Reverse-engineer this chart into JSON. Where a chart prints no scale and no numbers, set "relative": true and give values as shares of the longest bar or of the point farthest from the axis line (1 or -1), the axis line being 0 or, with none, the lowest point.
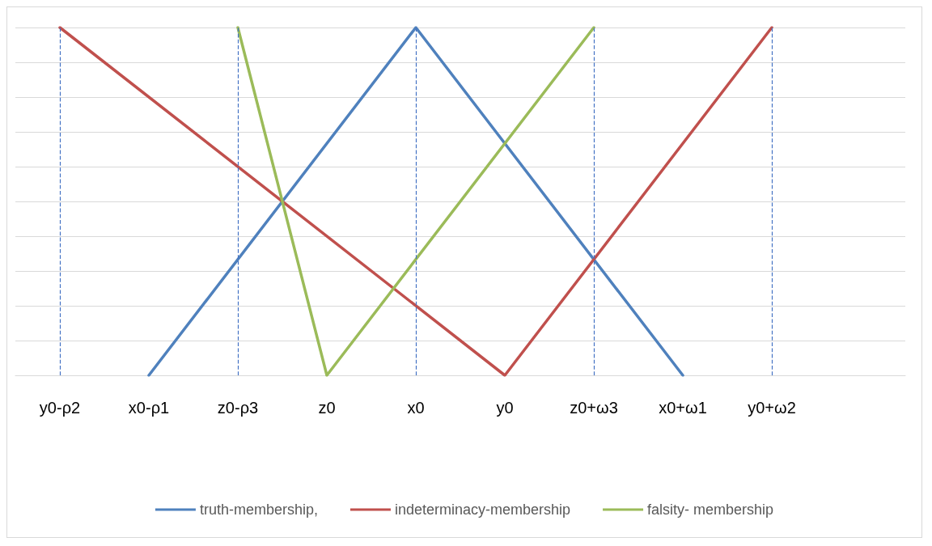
{
  "chart_data": {
    "type": "line",
    "relative": true,
    "categories": [
      "y0-ρ2",
      "x0-ρ1",
      "z0-ρ3",
      "z0",
      "x0",
      "y0",
      "z0+ω3",
      "x0+ω1",
      "y0+ω2",
      null
    ],
    "series": [
      {
        "name": "truth-membership,",
        "color": "#4f81bd",
        "values": [
          null,
          0,
          null,
          null,
          1,
          null,
          null,
          0,
          null,
          null
        ]
      },
      {
        "name": "indeterminacy-membership",
        "color": "#c0504d",
        "values": [
          1,
          null,
          null,
          null,
          null,
          0,
          null,
          null,
          1,
          null
        ]
      },
      {
        "name": "falsity- membership",
        "color": "#9bbb59",
        "values": [
          null,
          null,
          1,
          0,
          null,
          null,
          1,
          null,
          null,
          null
        ]
      }
    ],
    "ref_lines": [
      {
        "axis": "x",
        "value": "y0-ρ2",
        "color": "#4472c4",
        "line_style": "dashed"
      },
      {
        "axis": "x",
        "value": "z0-ρ3",
        "color": "#4472c4",
        "line_style": "dashed"
      },
      {
        "axis": "x",
        "value": "x0",
        "color": "#4472c4",
        "line_style": "dashed"
      },
      {
        "axis": "x",
        "value": "z0+ω3",
        "color": "#4472c4",
        "line_style": "dashed"
      },
      {
        "axis": "x",
        "value": "y0+ω2",
        "color": "#4472c4",
        "line_style": "dashed"
      }
    ],
    "grid": "y",
    "legend": "bottom",
    "marker": "none",
    "line_style": "solid"
  }
}
